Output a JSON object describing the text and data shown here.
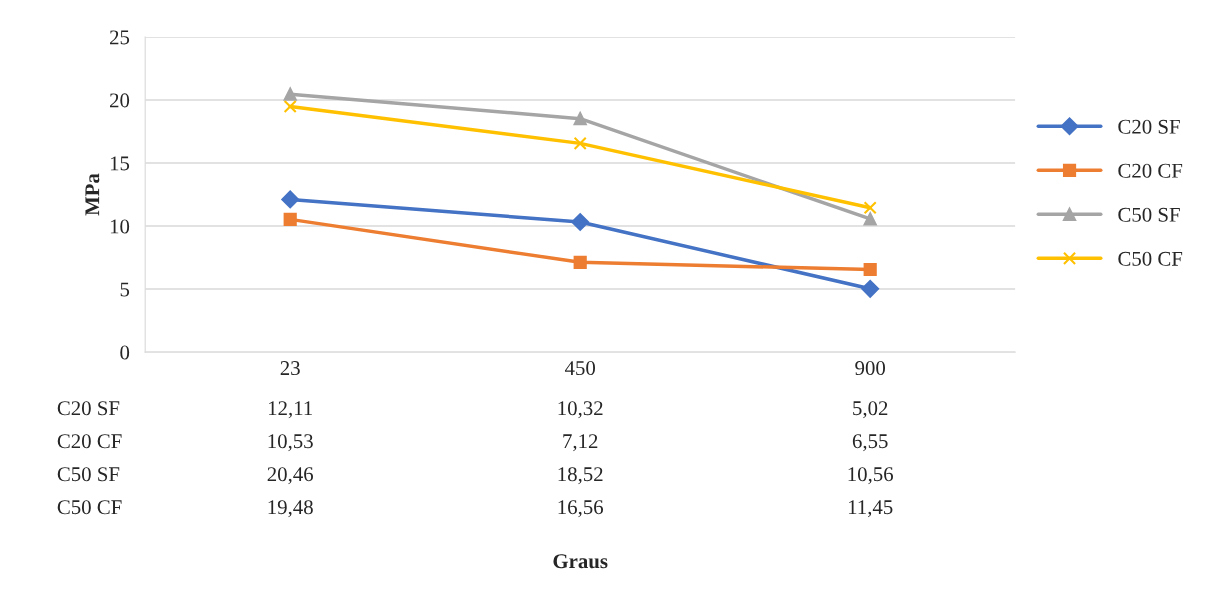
{
  "chart_data": {
    "type": "line",
    "annotations": [
      "Graus"
    ],
    "ylabel": "MPa",
    "categories": [
      "23",
      "450",
      "900"
    ],
    "series": [
      {
        "name": "C20 SF",
        "color": "#4472c4",
        "marker": "diamond",
        "values": [
          12.11,
          10.32,
          5.02
        ],
        "value_labels": [
          "12,11",
          "10,32",
          "5,02"
        ]
      },
      {
        "name": "C20 CF",
        "color": "#ed7d31",
        "marker": "square",
        "values": [
          10.53,
          7.12,
          6.55
        ],
        "value_labels": [
          "10,53",
          "7,12",
          "6,55"
        ]
      },
      {
        "name": "C50 SF",
        "color": "#a5a5a5",
        "marker": "triangle",
        "values": [
          20.46,
          18.52,
          10.56
        ],
        "value_labels": [
          "20,46",
          "18,52",
          "10,56"
        ]
      },
      {
        "name": "C50 CF",
        "color": "#ffc000",
        "marker": "cross",
        "values": [
          19.48,
          16.56,
          11.45
        ],
        "value_labels": [
          "19,48",
          "16,56",
          "11,45"
        ]
      }
    ],
    "ylim": [
      0,
      25
    ],
    "yticks": [
      0,
      5,
      10,
      15,
      20,
      25
    ],
    "grid": "y",
    "legend": "right",
    "line_style": "solid"
  }
}
